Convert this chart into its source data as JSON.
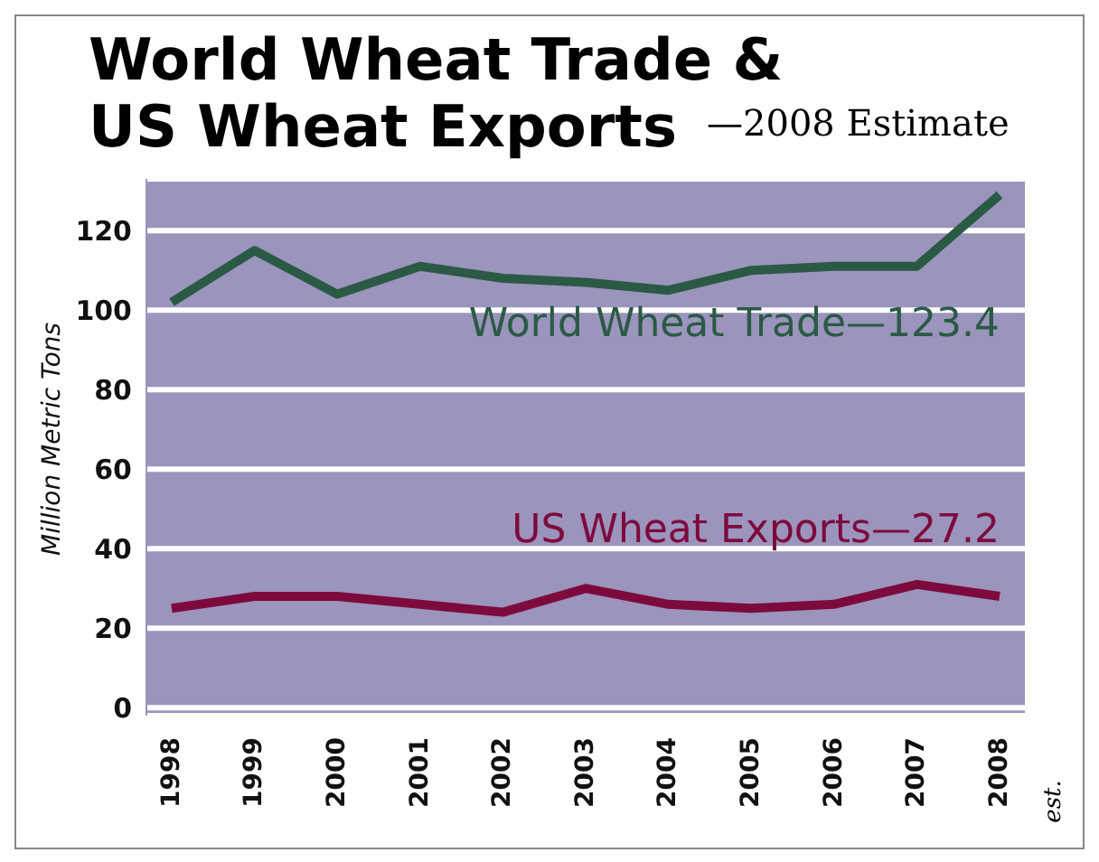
{
  "chart_data": {
    "type": "line",
    "title": "World Wheat Trade & US Wheat Exports",
    "subtitle": "—2008 Estimate",
    "ylabel": "Million Metric Tons",
    "categories": [
      "1998",
      "1999",
      "2000",
      "2001",
      "2002",
      "2003",
      "2004",
      "2005",
      "2006",
      "2007",
      "2008"
    ],
    "series": [
      {
        "name": "World Wheat Trade—123.4",
        "color": "#2a5a44",
        "values": [
          102,
          115,
          104,
          111,
          108,
          107,
          105,
          110,
          111,
          111,
          129
        ]
      },
      {
        "name": "US Wheat Exports—27.2",
        "color": "#7d0a3c",
        "values": [
          25,
          28,
          28,
          26,
          24,
          30,
          26,
          25,
          26,
          31,
          28
        ]
      }
    ],
    "ylim": [
      -2,
      133
    ],
    "yticks": [
      0,
      20,
      40,
      60,
      80,
      100,
      120
    ],
    "grid": "y",
    "legend": false,
    "marker": "none",
    "line_style": "solid",
    "annotations": [
      "est."
    ]
  }
}
